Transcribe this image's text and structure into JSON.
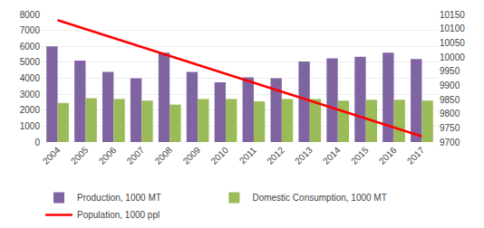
{
  "chart_data": {
    "type": "bar",
    "categories": [
      "2004",
      "2005",
      "2006",
      "2007",
      "2008",
      "2009",
      "2010",
      "2011",
      "2012",
      "2013",
      "2014",
      "2015",
      "2016",
      "2017"
    ],
    "series": [
      {
        "name": "Production, 1000 MT",
        "color": "#8064a2",
        "type": "bar",
        "values": [
          6000,
          5100,
          4400,
          4000,
          5600,
          4400,
          3750,
          4050,
          4000,
          5050,
          5250,
          5350,
          5600,
          5200
        ]
      },
      {
        "name": "Domestic Consumption, 1000 MT",
        "color": "#9bbb59",
        "type": "bar",
        "values": [
          2450,
          2750,
          2700,
          2600,
          2350,
          2700,
          2700,
          2550,
          2700,
          2700,
          2600,
          2650,
          2650,
          2600
        ]
      },
      {
        "name": "Population, 1000 ppl",
        "color": "#ff0000",
        "type": "line",
        "axis": "y2",
        "x": [
          "2004",
          "2017"
        ],
        "values": [
          10130,
          9720
        ]
      }
    ],
    "ylim": [
      0,
      8000
    ],
    "yticks": [
      0,
      1000,
      2000,
      3000,
      4000,
      5000,
      6000,
      7000,
      8000
    ],
    "y2lim": [
      9700,
      10150
    ],
    "y2ticks": [
      9700,
      9750,
      9800,
      9850,
      9900,
      9950,
      10000,
      10050,
      10100,
      10150
    ],
    "grid": true,
    "legend": "bottom"
  }
}
